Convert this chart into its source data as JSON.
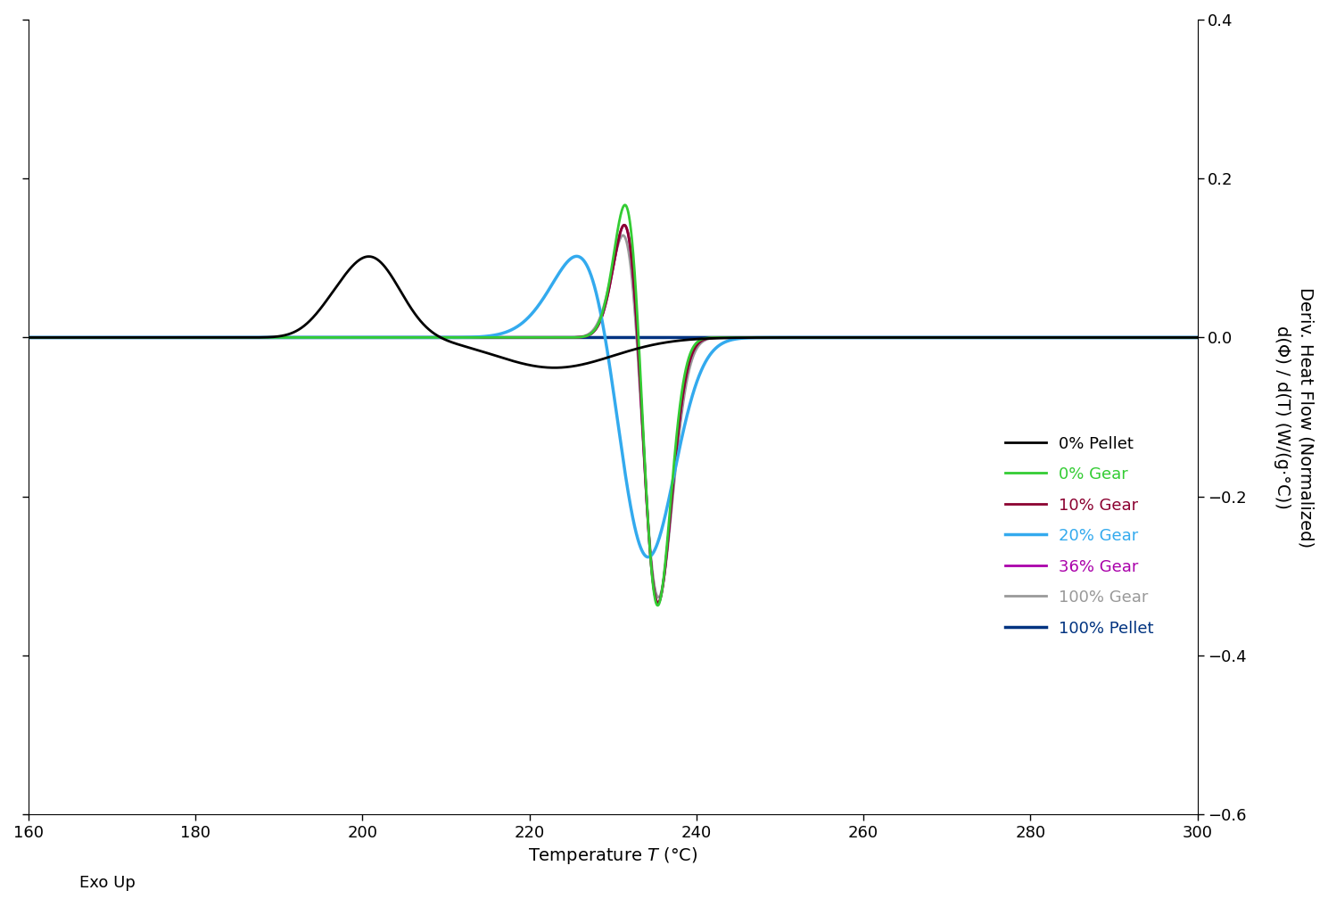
{
  "xlim": [
    160,
    300
  ],
  "ylim": [
    -0.6,
    0.4
  ],
  "yticks": [
    -0.6,
    -0.4,
    -0.2,
    0.0,
    0.2,
    0.4
  ],
  "xticks": [
    160,
    180,
    200,
    220,
    240,
    260,
    280,
    300
  ],
  "ylabel_right": "Deriv. Heat Flow (Normalized)\nd(Φ) / d(T) (W/(g·°C))",
  "exo_label": "Exo Up",
  "legend_entries": [
    {
      "label": "0% Pellet",
      "color": "#000000",
      "lw": 2.0
    },
    {
      "label": "0% Gear",
      "color": "#33cc33",
      "lw": 2.0
    },
    {
      "label": "10% Gear",
      "color": "#8b0030",
      "lw": 2.0
    },
    {
      "label": "20% Gear",
      "color": "#33aaee",
      "lw": 2.5
    },
    {
      "label": "36% Gear",
      "color": "#aa00aa",
      "lw": 2.0
    },
    {
      "label": "100% Gear",
      "color": "#999999",
      "lw": 2.0
    },
    {
      "label": "100% Pellet",
      "color": "#003380",
      "lw": 2.5
    }
  ],
  "background_color": "#ffffff",
  "axis_fontsize": 14,
  "tick_fontsize": 13,
  "legend_fontsize": 13
}
